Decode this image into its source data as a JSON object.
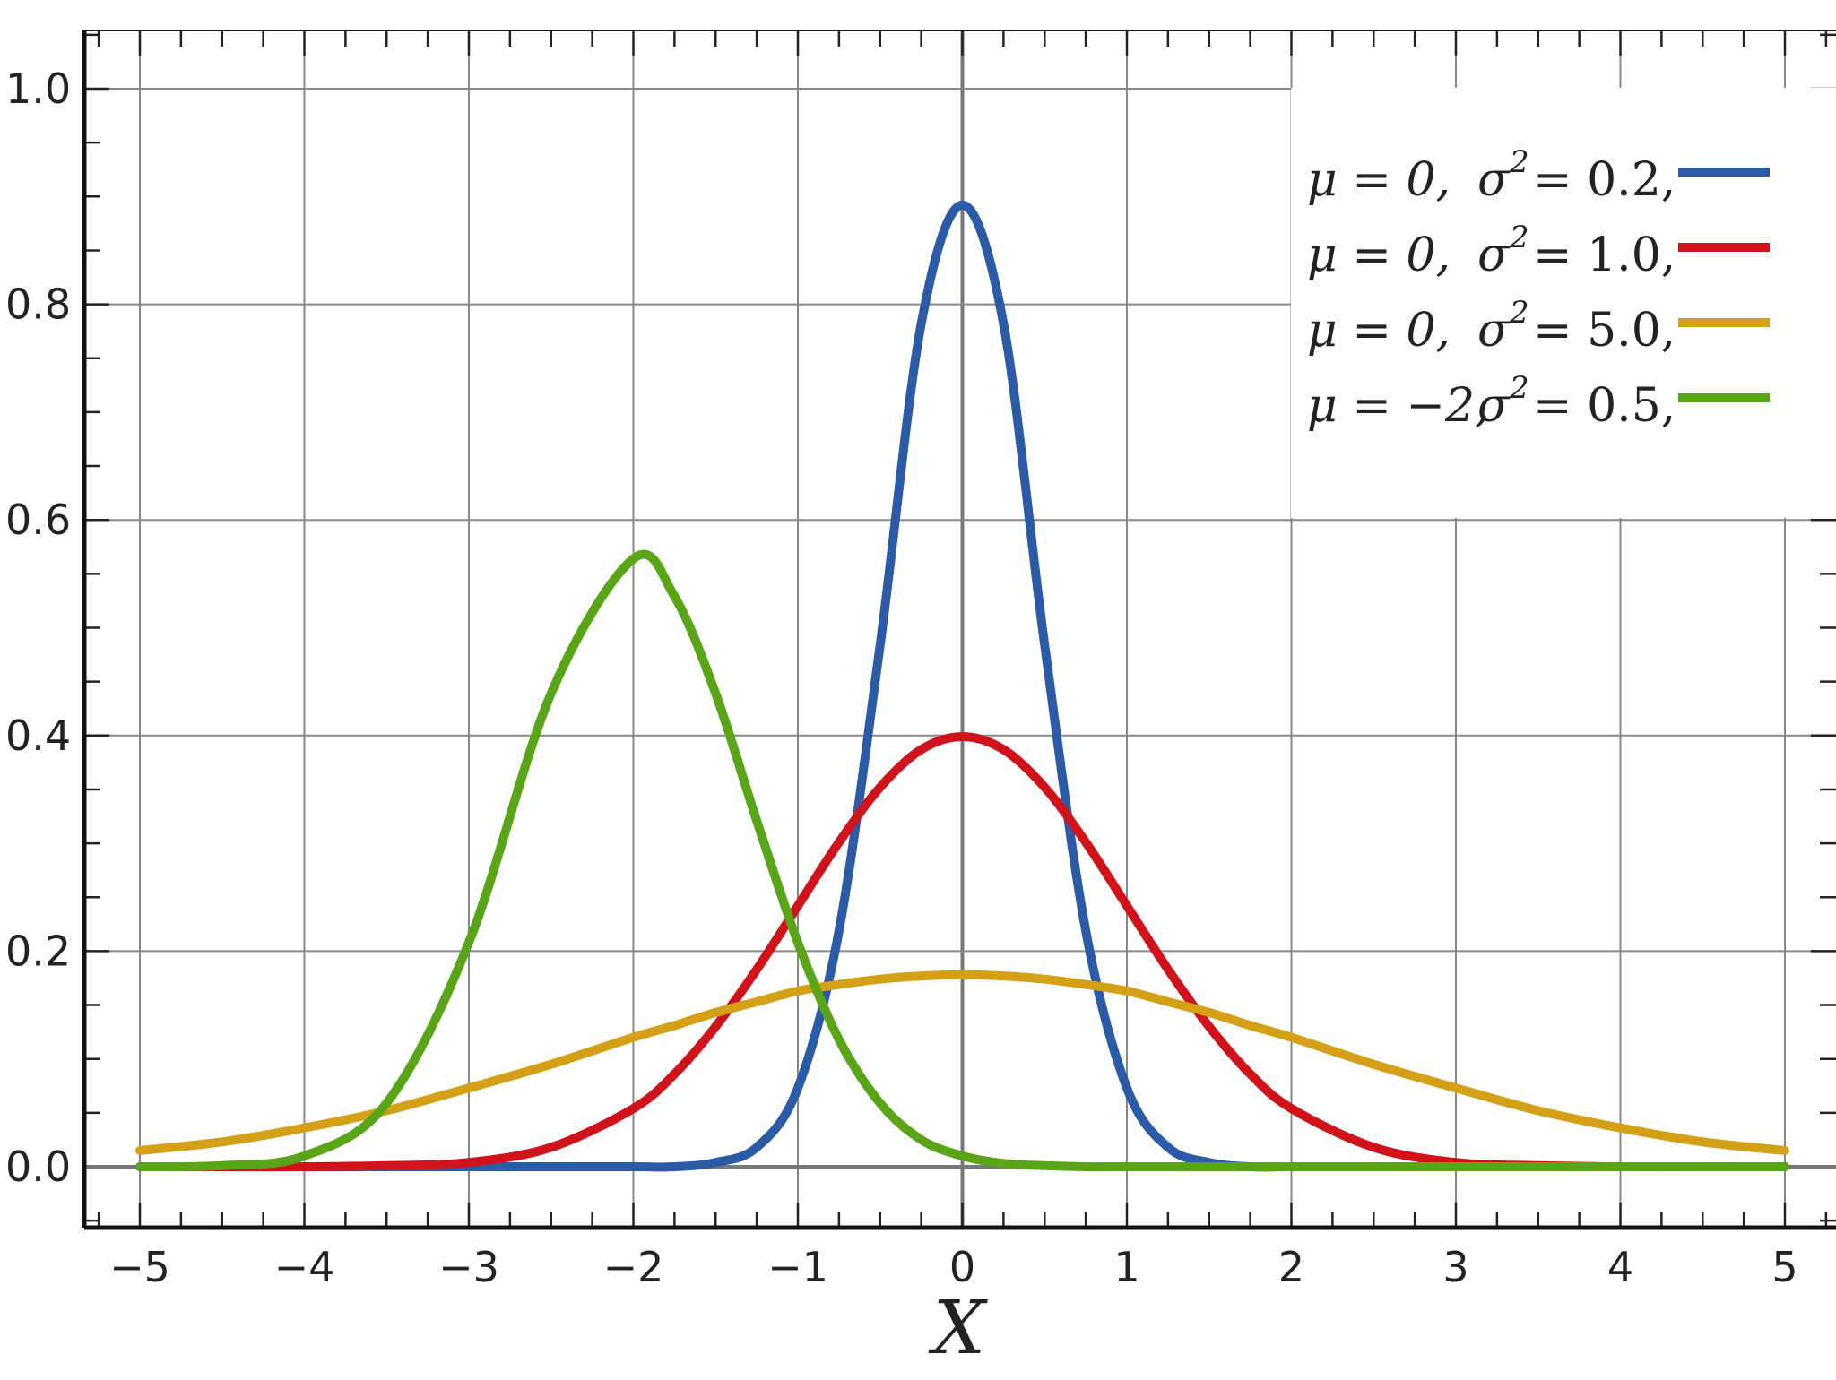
{
  "chart_data": {
    "type": "line",
    "title": "",
    "xlabel": "X",
    "ylabel": "",
    "xlim": [
      -5.35,
      5.35
    ],
    "ylim": [
      -0.055,
      1.055
    ],
    "grid": true,
    "x_ticks": [
      -5,
      -4,
      -3,
      -2,
      -1,
      0,
      1,
      2,
      3,
      4,
      5
    ],
    "x_tick_labels": [
      "−5",
      "−4",
      "−3",
      "−2",
      "−1",
      "0",
      "1",
      "2",
      "3",
      "4",
      "5"
    ],
    "y_ticks": [
      0.0,
      0.2,
      0.4,
      0.6,
      0.8,
      1.0
    ],
    "y_tick_labels": [
      "0.0",
      "0.2",
      "0.4",
      "0.6",
      "0.8",
      "1.0"
    ],
    "legend_position": "top-right",
    "x": [
      -5.0,
      -4.5,
      -4.0,
      -3.5,
      -3.0,
      -2.5,
      -2.0,
      -1.75,
      -1.5,
      -1.25,
      -1.0,
      -0.75,
      -0.5,
      -0.25,
      0.0,
      0.25,
      0.5,
      0.75,
      1.0,
      1.25,
      1.5,
      1.75,
      2.0,
      2.5,
      3.0,
      3.5,
      4.0,
      4.5,
      5.0
    ],
    "series": [
      {
        "mu": 0,
        "sigma2": 0.2,
        "legend_mu": "μ = 0,",
        "legend_sigma": "σ",
        "legend_exp": "2",
        "legend_value": "= 0.2,",
        "color": "#2b5ba7",
        "values": [
          0.0,
          0.0,
          0.0,
          0.0,
          0.0,
          0.0,
          0.0,
          0.0,
          0.004,
          0.018,
          0.073,
          0.219,
          0.484,
          0.782,
          0.892,
          0.782,
          0.484,
          0.219,
          0.073,
          0.018,
          0.004,
          0.0,
          0.0,
          0.0,
          0.0,
          0.0,
          0.0,
          0.0,
          0.0
        ]
      },
      {
        "mu": 0,
        "sigma2": 1.0,
        "legend_mu": "μ = 0,",
        "legend_sigma": "σ",
        "legend_exp": "2",
        "legend_value": "= 1.0,",
        "color": "#d0121b",
        "values": [
          0.0,
          0.0,
          0.0,
          0.001,
          0.004,
          0.018,
          0.054,
          0.086,
          0.13,
          0.183,
          0.242,
          0.301,
          0.352,
          0.387,
          0.399,
          0.387,
          0.352,
          0.301,
          0.242,
          0.183,
          0.13,
          0.086,
          0.054,
          0.018,
          0.004,
          0.001,
          0.0,
          0.0,
          0.0
        ]
      },
      {
        "mu": 0,
        "sigma2": 5.0,
        "legend_mu": "μ = 0,",
        "legend_sigma": "σ",
        "legend_exp": "2",
        "legend_value": "= 5.0,",
        "color": "#d4a017",
        "values": [
          0.015,
          0.023,
          0.036,
          0.052,
          0.073,
          0.095,
          0.12,
          0.131,
          0.143,
          0.153,
          0.163,
          0.169,
          0.174,
          0.177,
          0.178,
          0.177,
          0.174,
          0.169,
          0.163,
          0.153,
          0.143,
          0.131,
          0.12,
          0.095,
          0.073,
          0.052,
          0.036,
          0.023,
          0.015
        ]
      },
      {
        "mu": -2,
        "sigma2": 0.5,
        "legend_mu": "μ = −2,",
        "legend_sigma": "σ",
        "legend_exp": "2",
        "legend_value": "= 0.5,",
        "color": "#5aa417",
        "values": [
          0.0,
          0.001,
          0.01,
          0.059,
          0.208,
          0.439,
          0.564,
          0.529,
          0.439,
          0.321,
          0.208,
          0.118,
          0.059,
          0.025,
          0.01,
          0.003,
          0.001,
          0.0,
          0.0,
          0.0,
          0.0,
          0.0,
          0.0,
          0.0,
          0.0,
          0.0,
          0.0,
          0.0,
          0.0
        ]
      }
    ]
  }
}
